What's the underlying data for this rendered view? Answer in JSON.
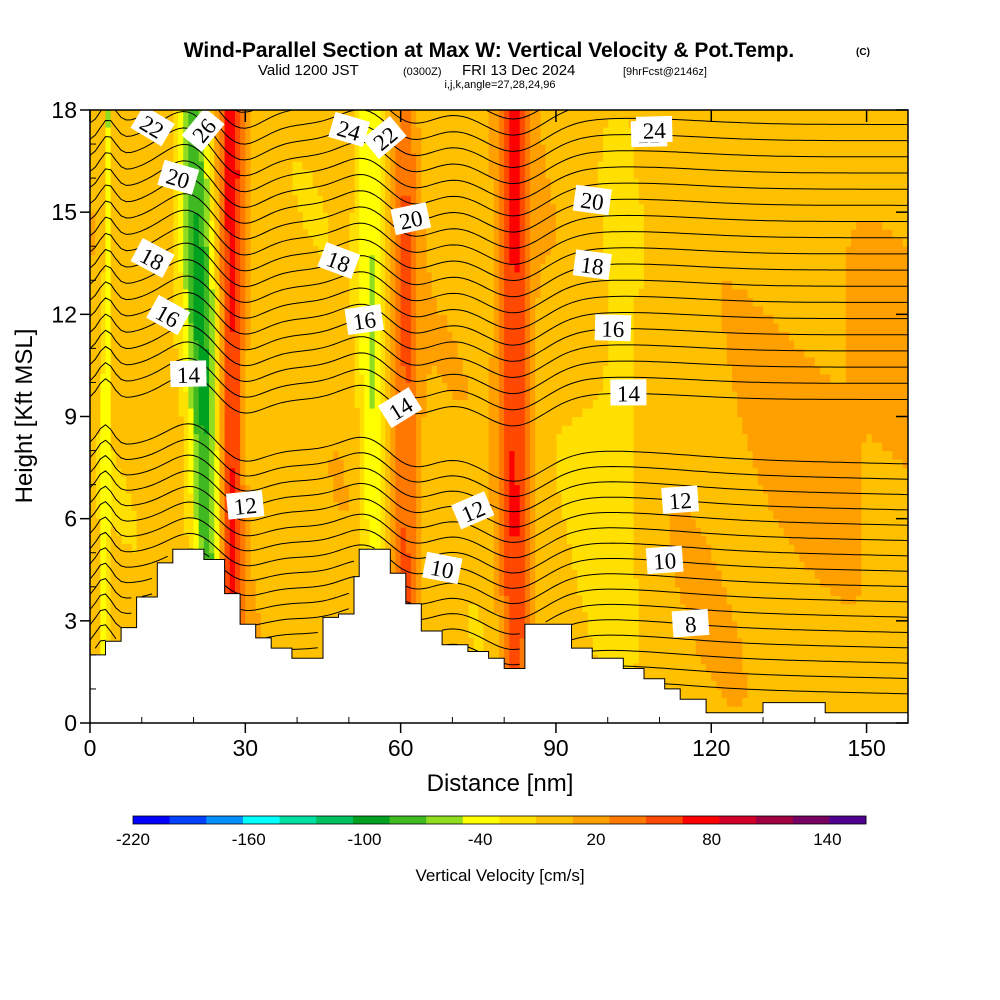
{
  "title": "Wind-Parallel Section at Max W: Vertical Velocity & Pot.Temp.",
  "title_mark": "(C)",
  "subtitle_valid": "Valid 1200 JST",
  "subtitle_utc": "(0300Z)",
  "subtitle_date": "FRI 13 Dec 2024",
  "subtitle_fcst": "[9hrFcst@2146z]",
  "subtitle_ijk": "i,j,k,angle=27,28,24,96",
  "chart_data": {
    "type": "heatmap",
    "title": "Wind-Parallel Section at Max W: Vertical Velocity & Pot.Temp.",
    "xlabel": "Distance [nm]",
    "ylabel": "Height [Kft MSL]",
    "xlim": [
      0,
      158
    ],
    "ylim": [
      0,
      18
    ],
    "xticks": [
      0,
      30,
      60,
      90,
      120,
      150
    ],
    "yticks": [
      0,
      3,
      6,
      9,
      12,
      15,
      18
    ],
    "grid": false,
    "terrain": [
      [
        0,
        2
      ],
      [
        3,
        2
      ],
      [
        3,
        2.4
      ],
      [
        6,
        2.4
      ],
      [
        6,
        2.8
      ],
      [
        9,
        2.8
      ],
      [
        9,
        3.7
      ],
      [
        13,
        3.7
      ],
      [
        13,
        4.7
      ],
      [
        16,
        4.7
      ],
      [
        16,
        5.1
      ],
      [
        22,
        5.1
      ],
      [
        22,
        4.8
      ],
      [
        26,
        4.8
      ],
      [
        26,
        3.8
      ],
      [
        29,
        3.8
      ],
      [
        29,
        2.9
      ],
      [
        32,
        2.9
      ],
      [
        32,
        2.5
      ],
      [
        35,
        2.5
      ],
      [
        35,
        2.2
      ],
      [
        39,
        2.2
      ],
      [
        39,
        1.9
      ],
      [
        45,
        1.9
      ],
      [
        45,
        3.1
      ],
      [
        48,
        3.1
      ],
      [
        48,
        3.2
      ],
      [
        51,
        3.2
      ],
      [
        51,
        4.3
      ],
      [
        52,
        4.3
      ],
      [
        52,
        5.1
      ],
      [
        58,
        5.1
      ],
      [
        58,
        4.4
      ],
      [
        61,
        4.4
      ],
      [
        61,
        3.5
      ],
      [
        64,
        3.5
      ],
      [
        64,
        2.7
      ],
      [
        68,
        2.7
      ],
      [
        68,
        2.3
      ],
      [
        73,
        2.3
      ],
      [
        73,
        2.1
      ],
      [
        77,
        2.1
      ],
      [
        77,
        1.9
      ],
      [
        80,
        1.9
      ],
      [
        80,
        1.6
      ],
      [
        84,
        1.6
      ],
      [
        84,
        2.9
      ],
      [
        93,
        2.9
      ],
      [
        93,
        2.2
      ],
      [
        97,
        2.2
      ],
      [
        97,
        1.9
      ],
      [
        103,
        1.9
      ],
      [
        103,
        1.6
      ],
      [
        107,
        1.6
      ],
      [
        107,
        1.3
      ],
      [
        111,
        1.3
      ],
      [
        111,
        1.0
      ],
      [
        114,
        1.0
      ],
      [
        114,
        0.7
      ],
      [
        119,
        0.7
      ],
      [
        119,
        0.3
      ],
      [
        130,
        0.3
      ],
      [
        130,
        0.6
      ],
      [
        142,
        0.6
      ],
      [
        142,
        0.3
      ],
      [
        158,
        0.3
      ]
    ],
    "vertical_velocity_features": [
      {
        "x_base": 2.5,
        "x_top": 3.5,
        "width": 1.5,
        "w": -50
      },
      {
        "x_base": 24,
        "x_top": 20,
        "width": 6,
        "w": -90
      },
      {
        "x_base": 27,
        "x_top": 27.5,
        "width": 5,
        "w": 80
      },
      {
        "x_base": 55,
        "x_top": 54,
        "width": 5,
        "w": -50
      },
      {
        "x_base": 61,
        "x_top": 61,
        "width": 5,
        "w": 50
      },
      {
        "x_base": 82,
        "x_top": 82,
        "width": 6,
        "w": 70
      },
      {
        "x_base": 100,
        "x_top": 104,
        "width": 14,
        "w": -15
      }
    ],
    "theta_contours": [
      {
        "value": 8,
        "label": true
      },
      {
        "value": 10,
        "label": true
      },
      {
        "value": 12,
        "label": true
      },
      {
        "value": 14,
        "label": true
      },
      {
        "value": 16,
        "label": true
      },
      {
        "value": 18,
        "label": true
      },
      {
        "value": 20,
        "label": true
      },
      {
        "value": 22,
        "label": true
      },
      {
        "value": 24,
        "label": true
      },
      {
        "value": 26,
        "label": true
      }
    ],
    "colorbar": {
      "title": "Vertical Velocity [cm/s]",
      "labels": [
        -220,
        -160,
        -100,
        -40,
        20,
        80,
        140
      ],
      "levels": [
        -220,
        -200,
        -180,
        -160,
        -140,
        -120,
        -100,
        -80,
        -60,
        -40,
        -20,
        0,
        20,
        40,
        60,
        80,
        100,
        120,
        140,
        160
      ],
      "colors": [
        "#0000ff",
        "#0040ff",
        "#0090ff",
        "#00ffff",
        "#00e0a0",
        "#00c060",
        "#00a020",
        "#40b820",
        "#90dc20",
        "#ffff00",
        "#ffe000",
        "#ffc000",
        "#ffa000",
        "#ff7800",
        "#ff4800",
        "#ff0000",
        "#d00028",
        "#a00040",
        "#780060",
        "#500090"
      ]
    }
  }
}
